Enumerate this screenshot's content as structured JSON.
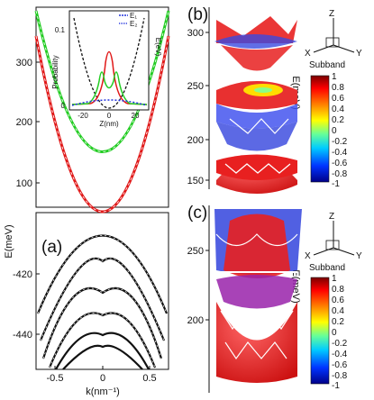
{
  "figure": {
    "panel_a": {
      "label": "(a)",
      "xlabel": "k(nm⁻¹)",
      "xticks": [
        "-0.5",
        "0",
        "0.5"
      ],
      "ylabel_lower": "E(meV)",
      "yticks_upper": [
        "300",
        "200",
        "100"
      ],
      "yticks_lower": [
        "-420",
        "-440"
      ],
      "inset": {
        "xlabel": "Z(nm)",
        "ylabel_left": "Probability",
        "ylabel_right": "E(eV)",
        "xticks": [
          "-20",
          "0",
          "20"
        ],
        "yticks": [
          "0.1",
          "0"
        ],
        "legend": [
          "E₁",
          "E₂"
        ]
      }
    },
    "panel_b": {
      "label": "(b)",
      "ylabel": "E(meV)",
      "yticks": [
        "300",
        "250",
        "200",
        "150"
      ],
      "axes": {
        "z": "Z",
        "x": "X",
        "y": "Y"
      },
      "colorbar_title": "Subband",
      "colorbar_ticks": [
        "1",
        "0.8",
        "0.6",
        "0.4",
        "0.2",
        "0",
        "-0.2",
        "-0.4",
        "-0.6",
        "-0.8",
        "-1"
      ]
    },
    "panel_c": {
      "label": "(c)",
      "ylabel": "E(meV)",
      "yticks": [
        "250",
        "200"
      ],
      "axes": {
        "z": "Z",
        "x": "X",
        "y": "Y"
      },
      "colorbar_title": "Subband",
      "colorbar_ticks": [
        "1",
        "0.8",
        "0.6",
        "0.4",
        "0.2",
        "0",
        "-0.2",
        "-0.4",
        "-0.6",
        "-0.8",
        "-1"
      ]
    }
  },
  "colors": {
    "red": "#e01818",
    "green": "#22cc22",
    "blue": "#2233dd",
    "black": "#111111"
  }
}
